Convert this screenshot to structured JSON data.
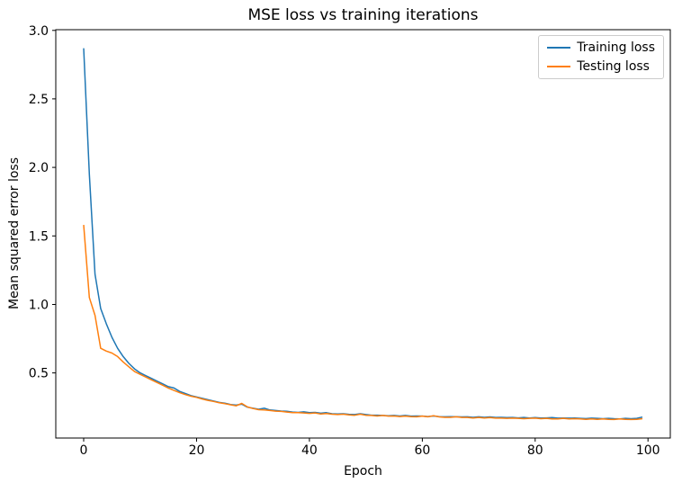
{
  "figure": {
    "background": "#ffffff",
    "axes_edge_color": "#000000",
    "text_color": "#000000"
  },
  "chart_data": {
    "type": "line",
    "title": "MSE loss vs training iterations",
    "xlabel": "Epoch",
    "ylabel": "Mean squared error loss",
    "xlim": [
      -4.95,
      103.95
    ],
    "ylim": [
      0.025,
      3.005
    ],
    "x_ticks": [
      0,
      20,
      40,
      60,
      80,
      100
    ],
    "y_ticks": [
      0.5,
      1.0,
      1.5,
      2.0,
      2.5,
      3.0
    ],
    "grid": false,
    "legend_position": "upper right",
    "x": [
      0,
      1,
      2,
      3,
      4,
      5,
      6,
      7,
      8,
      9,
      10,
      11,
      12,
      13,
      14,
      15,
      16,
      17,
      18,
      19,
      20,
      21,
      22,
      23,
      24,
      25,
      26,
      27,
      28,
      29,
      30,
      31,
      32,
      33,
      34,
      35,
      36,
      37,
      38,
      39,
      40,
      41,
      42,
      43,
      44,
      45,
      46,
      47,
      48,
      49,
      50,
      51,
      52,
      53,
      54,
      55,
      56,
      57,
      58,
      59,
      60,
      61,
      62,
      63,
      64,
      65,
      66,
      67,
      68,
      69,
      70,
      71,
      72,
      73,
      74,
      75,
      76,
      77,
      78,
      79,
      80,
      81,
      82,
      83,
      84,
      85,
      86,
      87,
      88,
      89,
      90,
      91,
      92,
      93,
      94,
      95,
      96,
      97,
      98,
      99
    ],
    "series": [
      {
        "name": "Training loss",
        "color": "#1f77b4",
        "values": [
          2.87,
          1.95,
          1.22,
          0.97,
          0.86,
          0.76,
          0.68,
          0.62,
          0.57,
          0.53,
          0.5,
          0.48,
          0.46,
          0.44,
          0.42,
          0.4,
          0.39,
          0.365,
          0.35,
          0.335,
          0.325,
          0.315,
          0.305,
          0.295,
          0.285,
          0.28,
          0.27,
          0.265,
          0.272,
          0.25,
          0.242,
          0.235,
          0.242,
          0.23,
          0.226,
          0.222,
          0.22,
          0.215,
          0.212,
          0.216,
          0.21,
          0.212,
          0.206,
          0.21,
          0.202,
          0.2,
          0.202,
          0.198,
          0.196,
          0.202,
          0.196,
          0.192,
          0.192,
          0.19,
          0.187,
          0.19,
          0.186,
          0.19,
          0.185,
          0.186,
          0.185,
          0.182,
          0.186,
          0.181,
          0.18,
          0.181,
          0.18,
          0.179,
          0.18,
          0.176,
          0.18,
          0.176,
          0.179,
          0.175,
          0.176,
          0.174,
          0.175,
          0.172,
          0.175,
          0.171,
          0.174,
          0.171,
          0.172,
          0.174,
          0.17,
          0.171,
          0.17,
          0.171,
          0.169,
          0.167,
          0.17,
          0.169,
          0.166,
          0.169,
          0.166,
          0.165,
          0.169,
          0.166,
          0.169,
          0.178
        ]
      },
      {
        "name": "Testing loss",
        "color": "#ff7f0e",
        "values": [
          1.58,
          1.05,
          0.92,
          0.68,
          0.66,
          0.645,
          0.62,
          0.58,
          0.545,
          0.51,
          0.49,
          0.47,
          0.45,
          0.43,
          0.41,
          0.39,
          0.372,
          0.356,
          0.342,
          0.33,
          0.322,
          0.31,
          0.3,
          0.292,
          0.282,
          0.276,
          0.268,
          0.26,
          0.278,
          0.252,
          0.24,
          0.232,
          0.23,
          0.226,
          0.221,
          0.219,
          0.215,
          0.211,
          0.21,
          0.208,
          0.205,
          0.208,
          0.2,
          0.204,
          0.199,
          0.196,
          0.199,
          0.194,
          0.191,
          0.199,
          0.191,
          0.19,
          0.186,
          0.19,
          0.185,
          0.186,
          0.182,
          0.185,
          0.181,
          0.18,
          0.185,
          0.18,
          0.188,
          0.179,
          0.176,
          0.176,
          0.18,
          0.175,
          0.175,
          0.171,
          0.175,
          0.171,
          0.174,
          0.17,
          0.17,
          0.169,
          0.17,
          0.169,
          0.166,
          0.169,
          0.17,
          0.166,
          0.169,
          0.165,
          0.165,
          0.169,
          0.165,
          0.166,
          0.164,
          0.161,
          0.165,
          0.161,
          0.164,
          0.161,
          0.16,
          0.164,
          0.161,
          0.16,
          0.161,
          0.166
        ]
      }
    ]
  }
}
